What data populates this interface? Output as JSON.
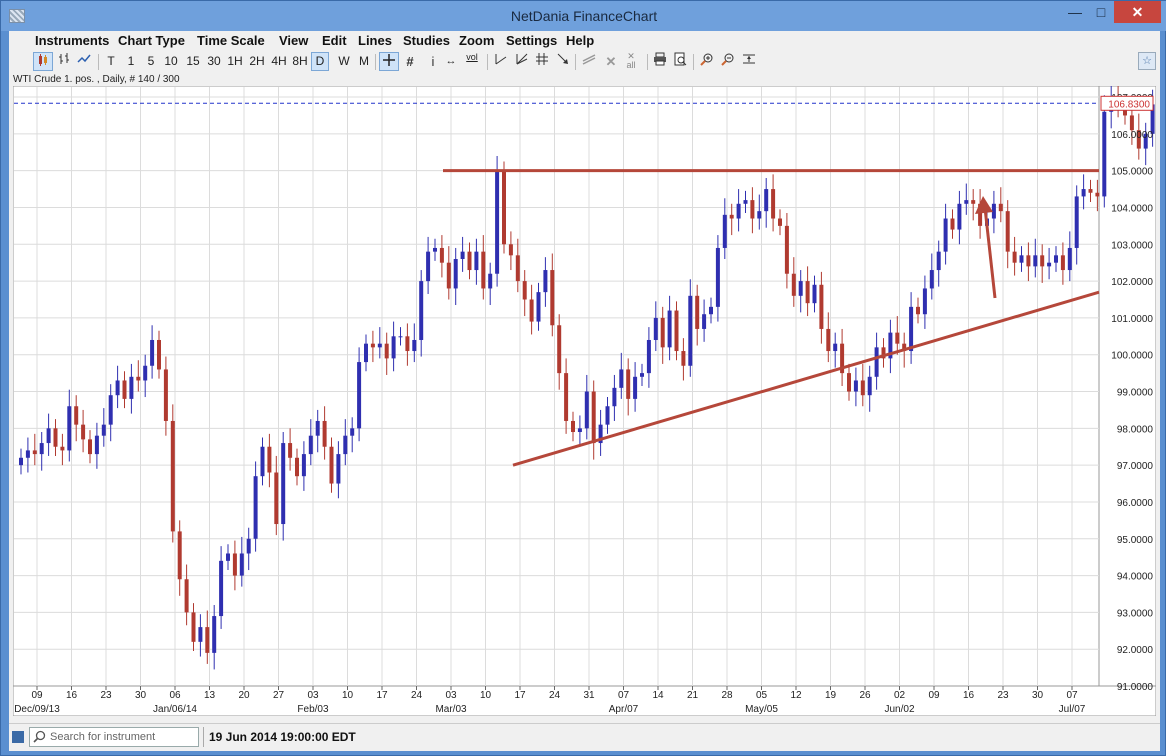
{
  "window": {
    "title": "NetDania FinanceChart",
    "minimize": "—",
    "maximize": "□",
    "close": "✕"
  },
  "menu": [
    "Instruments",
    "Chart Type",
    "Time Scale",
    "View",
    "Edit",
    "Lines",
    "Studies",
    "Zoom",
    "Settings",
    "Help"
  ],
  "toolbar": {
    "timescales": [
      "T",
      "1",
      "5",
      "10",
      "15",
      "30",
      "1H",
      "2H",
      "4H",
      "8H",
      "D",
      "W",
      "M"
    ],
    "selected_timescale": "D",
    "icons": [
      "candlestick-icon",
      "ohlc-bars-icon",
      "line-chart-icon",
      "crosshair-icon",
      "grid-icon",
      "info-icon",
      "scroll-icon",
      "volume-icon",
      "trendline-icon",
      "fan-icon",
      "fibonacci-icon",
      "arrow-icon",
      "parallel-lines-icon",
      "delete-icon",
      "delete-all-icon",
      "print-icon",
      "print-preview-icon",
      "zoom-in-icon",
      "zoom-out-icon",
      "zoom-reset-icon",
      "pin-icon"
    ],
    "vol_label": "vol",
    "delete_all_label": "all"
  },
  "chart_info": "WTI Crude 1. pos. , Daily, # 140 / 300",
  "colors": {
    "up_candle": "#2f2fb0",
    "down_candle": "#b03a30",
    "trendline": "#b5473a",
    "price_line": "#2233cc",
    "grid": "#dcdcdc",
    "background": "#ffffff"
  },
  "status": {
    "search_placeholder": "Search for instrument",
    "datetime": "19 Jun 2014 19:00:00 EDT"
  },
  "chart_data": {
    "type": "candlestick",
    "instrument": "WTI Crude 1. pos.",
    "interval": "Daily",
    "ylim": [
      91.0,
      107.3
    ],
    "y_ticks": [
      "91.0000",
      "92.0000",
      "93.0000",
      "94.0000",
      "95.0000",
      "96.0000",
      "97.0000",
      "98.0000",
      "99.0000",
      "100.0000",
      "101.0000",
      "102.0000",
      "103.0000",
      "104.0000",
      "105.0000",
      "106.0000",
      "107.0000"
    ],
    "current_price": "106.8300",
    "x_day_ticks": [
      "09",
      "16",
      "23",
      "30",
      "06",
      "13",
      "20",
      "27",
      "03",
      "10",
      "17",
      "24",
      "03",
      "10",
      "17",
      "24",
      "31",
      "07",
      "14",
      "21",
      "28",
      "05",
      "12",
      "19",
      "26",
      "02",
      "09",
      "16",
      "23",
      "30",
      "07"
    ],
    "x_month_labels": [
      {
        "label": "Dec/09/13",
        "at_tick": 0
      },
      {
        "label": "Jan/06/14",
        "at_tick": 4
      },
      {
        "label": "Feb/03",
        "at_tick": 8
      },
      {
        "label": "Mar/03",
        "at_tick": 12
      },
      {
        "label": "Apr/07",
        "at_tick": 17
      },
      {
        "label": "May/05",
        "at_tick": 21
      },
      {
        "label": "Jun/02",
        "at_tick": 25
      },
      {
        "label": "Jul/07",
        "at_tick": 30
      }
    ],
    "closes": [
      97.2,
      97.4,
      97.3,
      97.6,
      98.0,
      97.5,
      97.4,
      98.6,
      98.1,
      97.7,
      97.3,
      97.8,
      98.1,
      98.9,
      99.3,
      98.8,
      99.4,
      99.3,
      99.7,
      100.4,
      99.6,
      98.2,
      95.2,
      93.9,
      93.0,
      92.2,
      92.6,
      91.9,
      92.9,
      94.4,
      94.6,
      94.0,
      94.6,
      95.0,
      96.7,
      97.5,
      96.8,
      95.4,
      97.6,
      97.2,
      96.7,
      97.3,
      97.8,
      98.2,
      97.5,
      96.5,
      97.3,
      97.8,
      98.0,
      99.8,
      100.3,
      100.2,
      100.3,
      99.9,
      100.5,
      100.5,
      100.1,
      100.4,
      102.0,
      102.8,
      102.9,
      102.5,
      101.8,
      102.6,
      102.8,
      102.3,
      102.8,
      101.8,
      102.2,
      105.0,
      103.0,
      102.7,
      102.0,
      101.5,
      100.9,
      101.7,
      102.3,
      100.8,
      99.5,
      98.2,
      97.9,
      98.0,
      99.0,
      97.6,
      98.1,
      98.6,
      99.1,
      99.6,
      98.8,
      99.4,
      99.5,
      100.4,
      101.0,
      100.2,
      101.2,
      100.1,
      99.7,
      101.6,
      100.7,
      101.1,
      101.3,
      102.9,
      103.8,
      103.7,
      104.1,
      104.2,
      103.7,
      103.9,
      104.5,
      103.7,
      103.5,
      102.2,
      101.6,
      102.0,
      101.4,
      101.9,
      100.7,
      100.1,
      100.3,
      99.5,
      99.0,
      99.3,
      98.9,
      99.4,
      100.2,
      99.9,
      100.6,
      100.3,
      100.1,
      101.3,
      101.1,
      101.8,
      102.3,
      102.8,
      103.7,
      103.4,
      104.1,
      104.2,
      104.1,
      103.5,
      103.7,
      104.1,
      103.9,
      102.8,
      102.5,
      102.7,
      102.4,
      102.7,
      102.4,
      102.5,
      102.7,
      102.3,
      102.9,
      104.3,
      104.5,
      104.4,
      104.3,
      106.6,
      107.0,
      106.8,
      106.5,
      106.1,
      105.6,
      106.0,
      106.8
    ]
  }
}
